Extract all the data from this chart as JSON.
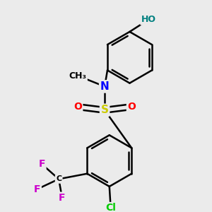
{
  "background_color": "#ebebeb",
  "figsize": [
    3.0,
    3.0
  ],
  "dpi": 100,
  "atom_colors": {
    "C": "#000000",
    "N": "#0000ff",
    "O": "#ff0000",
    "S": "#cccc00",
    "F": "#cc00cc",
    "Cl": "#00cc00",
    "HO": "#008080"
  },
  "bond_color": "#000000",
  "bond_width": 1.8
}
